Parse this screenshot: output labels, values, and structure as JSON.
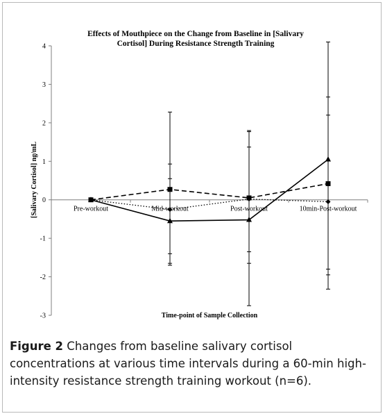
{
  "chart_data": {
    "type": "line",
    "title_lines": [
      "Effects of Mouthpiece on the Change from Baseline in [Salivary",
      "Cortisol]  During  Resistance Strength Training"
    ],
    "xlabel": "Time-point  of Sample Collection",
    "ylabel": "[Salivary Cortisol]  ng/mL",
    "categories": [
      "Pre-workout",
      "Mid-workout",
      "Post-workout",
      "10min-Post-workout"
    ],
    "ylim": [
      -3,
      4
    ],
    "yticks": [
      -3,
      -2,
      -1,
      0,
      1,
      2,
      3,
      4
    ],
    "grid": false,
    "legend": "none",
    "series": [
      {
        "style": "solid",
        "marker": "triangle",
        "color": "#000000",
        "values": [
          0,
          -0.55,
          -0.52,
          1.05
        ],
        "err_high": [
          null,
          2.28,
          1.8,
          4.1
        ],
        "err_low": [
          null,
          -1.65,
          -2.75,
          -1.8
        ]
      },
      {
        "style": "dashed",
        "marker": "square",
        "color": "#000000",
        "values": [
          0,
          0.27,
          0.05,
          0.42
        ],
        "err_high": [
          null,
          0.93,
          1.37,
          2.67
        ],
        "err_low": [
          null,
          -1.4,
          -1.35,
          -1.95
        ]
      },
      {
        "style": "dotted",
        "marker": "diamond",
        "color": "#000000",
        "values": [
          0,
          -0.25,
          0.02,
          -0.05
        ],
        "err_high": [
          null,
          0.55,
          1.77,
          2.2
        ],
        "err_low": [
          null,
          -1.7,
          -1.65,
          -2.32
        ]
      }
    ]
  },
  "caption": {
    "label": "Figure 2",
    "text": " Changes from baseline salivary cortisol concentrations at various time intervals during a 60-min high-intensity resistance strength training workout (n=6)."
  }
}
